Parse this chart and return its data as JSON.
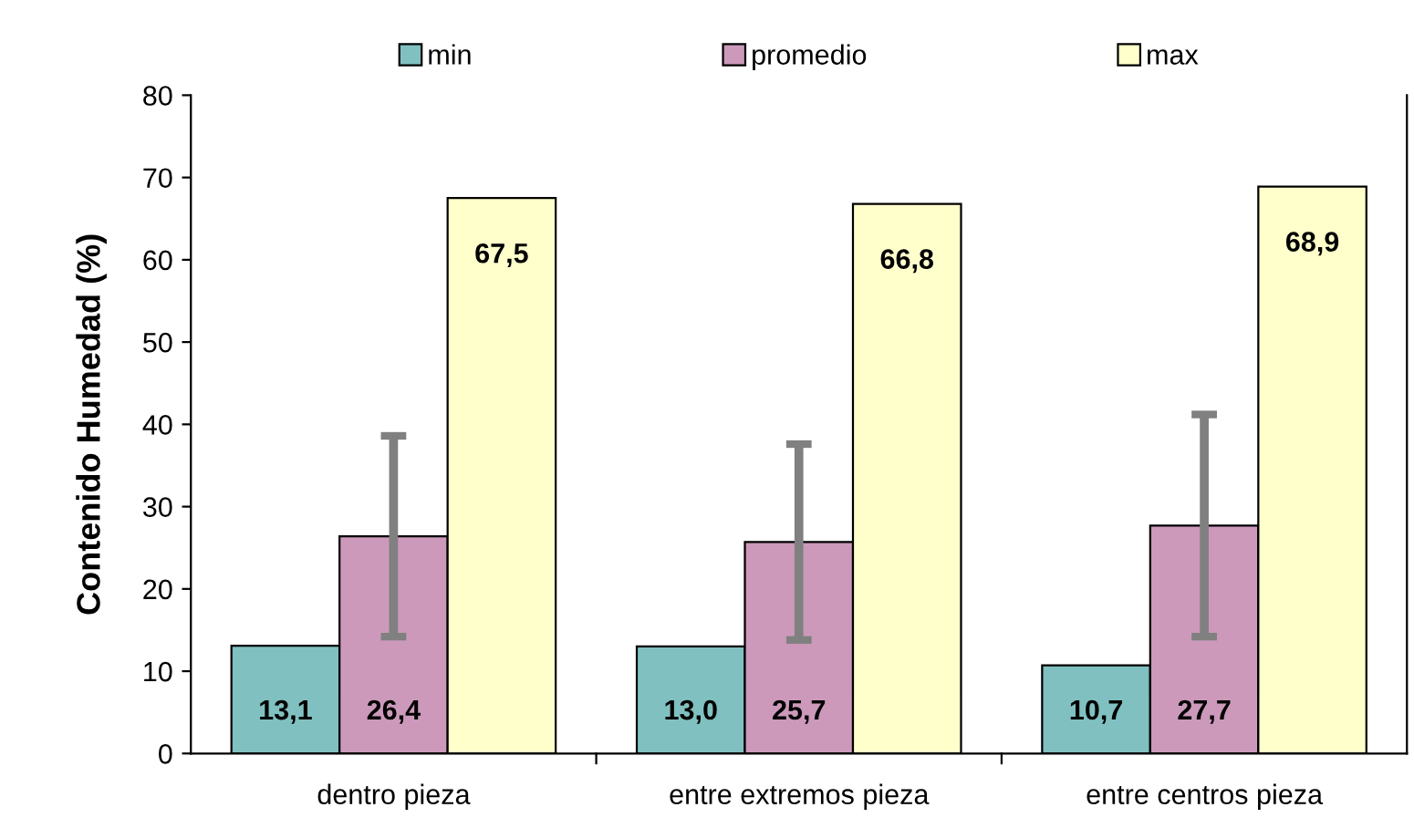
{
  "chart_data": {
    "type": "bar",
    "ylabel": "Contenido Humedad (%)",
    "categories": [
      "dentro pieza",
      "entre extremos pieza",
      "entre centros pieza"
    ],
    "series": [
      {
        "name": "min",
        "color": "#80c0c0",
        "values": [
          13.1,
          13.0,
          10.7
        ],
        "value_labels": [
          "13,1",
          "13,0",
          "10,7"
        ]
      },
      {
        "name": "promedio",
        "color": "#cc99bb",
        "values": [
          26.4,
          25.7,
          27.7
        ],
        "value_labels": [
          "26,4",
          "25,7",
          "27,7"
        ],
        "errors": [
          12.2,
          11.9,
          13.5
        ]
      },
      {
        "name": "max",
        "color": "#ffffcc",
        "values": [
          67.5,
          66.8,
          68.9
        ],
        "value_labels": [
          "67,5",
          "66,8",
          "68,9"
        ]
      }
    ],
    "ylim": [
      0,
      80
    ],
    "yticks": [
      0,
      10,
      20,
      30,
      40,
      50,
      60,
      70,
      80
    ],
    "grid": false,
    "legend": "top"
  }
}
